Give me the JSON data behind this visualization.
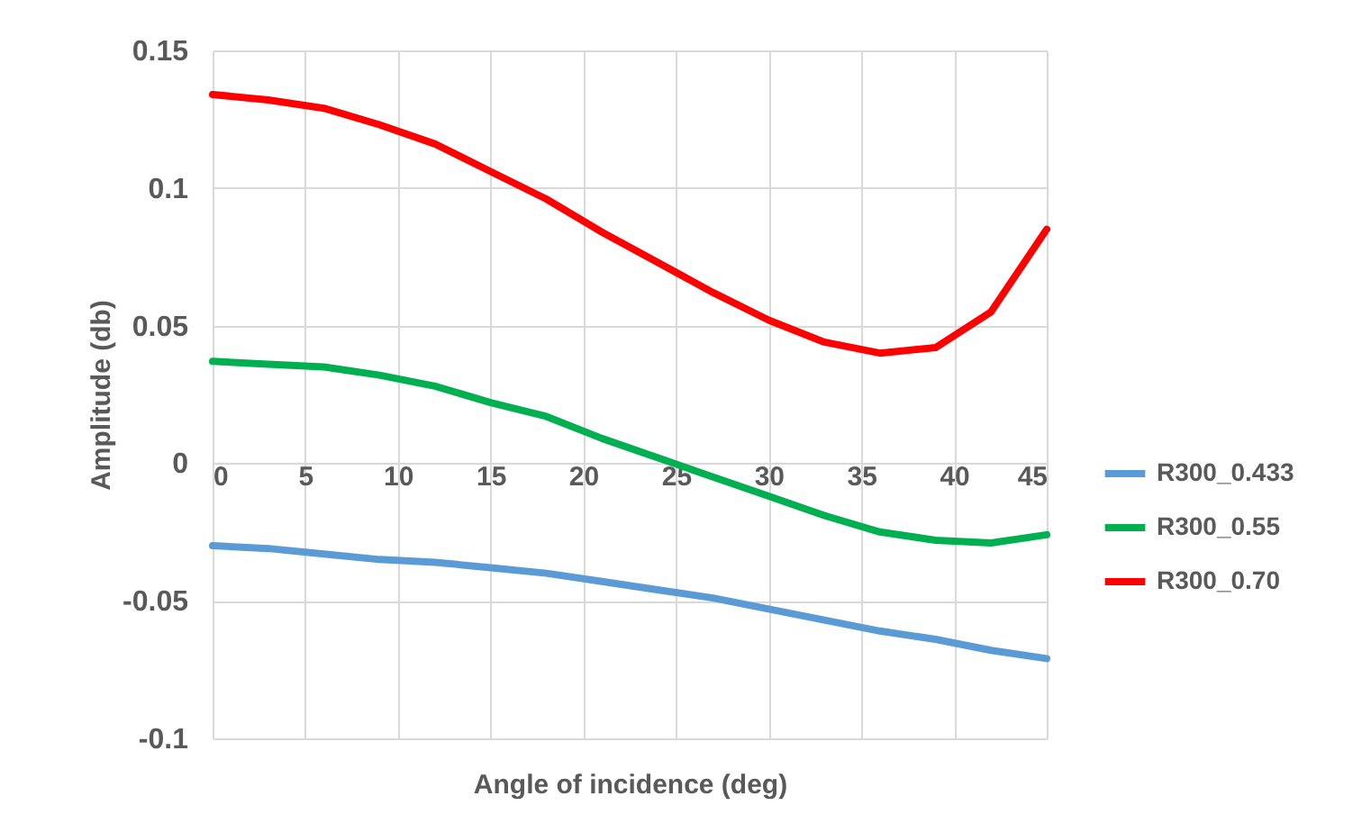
{
  "chart_data": {
    "type": "line",
    "xlabel": "Angle of incidence (deg)",
    "ylabel": "Amplitude (db)",
    "x": [
      0,
      3,
      6,
      9,
      12,
      15,
      18,
      21,
      24,
      27,
      30,
      33,
      36,
      39,
      42,
      45
    ],
    "series": [
      {
        "name": "R300_0.433",
        "color": "#5b9bd5",
        "values": [
          -0.03,
          -0.031,
          -0.033,
          -0.035,
          -0.036,
          -0.038,
          -0.04,
          -0.043,
          -0.046,
          -0.049,
          -0.053,
          -0.057,
          -0.061,
          -0.064,
          -0.068,
          -0.071
        ]
      },
      {
        "name": "R300_0.55",
        "color": "#00b050",
        "values": [
          0.037,
          0.036,
          0.035,
          0.032,
          0.028,
          0.022,
          0.017,
          0.009,
          0.002,
          -0.005,
          -0.012,
          -0.019,
          -0.025,
          -0.028,
          -0.029,
          -0.026
        ]
      },
      {
        "name": "R300_0.70",
        "color": "#ff0000",
        "values": [
          0.134,
          0.132,
          0.129,
          0.123,
          0.116,
          0.106,
          0.096,
          0.084,
          0.073,
          0.062,
          0.052,
          0.044,
          0.04,
          0.042,
          0.055,
          0.085
        ]
      }
    ],
    "xlim": [
      0,
      45
    ],
    "xticks": [
      0,
      5,
      10,
      15,
      20,
      25,
      30,
      35,
      40,
      45
    ],
    "ylim": [
      -0.1,
      0.15
    ],
    "yticks": [
      -0.1,
      -0.05,
      0,
      0.05,
      0.1,
      0.15
    ],
    "grid": true,
    "legend": "right",
    "marker": "none",
    "line_style": "solid"
  }
}
